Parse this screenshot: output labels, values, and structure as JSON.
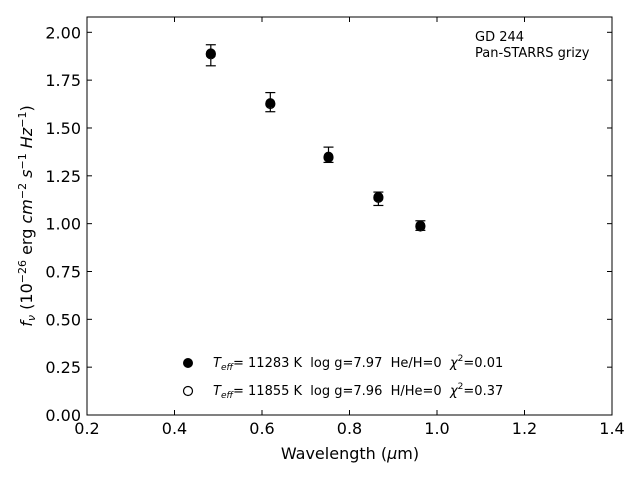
{
  "chart_data": {
    "type": "scatter",
    "annotation": {
      "line1": "GD 244",
      "line2": "Pan-STARRS grizy"
    },
    "xlabel": {
      "main": "Wavelength (",
      "sym": "μ",
      "end": "m)"
    },
    "ylabel": {
      "f": "f",
      "nu": "ν",
      "open": " (10",
      "e1": "−26",
      "erg": " erg ",
      "cm": "cm",
      "e2": "−2",
      "s": " s",
      "e3": "−1",
      "hz": " Hz",
      "e4": "−1",
      "close": ")"
    },
    "xlim": [
      0.2,
      1.4
    ],
    "ylim": [
      0.0,
      2.08
    ],
    "xticks": [
      0.2,
      0.4,
      0.6,
      0.8,
      1.0,
      1.2,
      1.4
    ],
    "xtick_labels": [
      "0.2",
      "0.4",
      "0.6",
      "0.8",
      "1.0",
      "1.2",
      "1.4"
    ],
    "yticks": [
      0.0,
      0.25,
      0.5,
      0.75,
      1.0,
      1.25,
      1.5,
      1.75,
      2.0
    ],
    "ytick_labels": [
      "0.00",
      "0.25",
      "0.50",
      "0.75",
      "1.00",
      "1.25",
      "1.50",
      "1.75",
      "2.00"
    ],
    "grid": false,
    "observed": {
      "x": [
        0.483,
        0.619,
        0.752,
        0.866,
        0.962
      ],
      "y": [
        1.88,
        1.635,
        1.36,
        1.13,
        0.99
      ],
      "yerr": [
        0.055,
        0.05,
        0.04,
        0.035,
        0.025
      ]
    },
    "series": [
      {
        "marker": "filled-circle",
        "x": [
          0.483,
          0.619,
          0.752,
          0.866,
          0.962
        ],
        "y": [
          1.89,
          1.63,
          1.35,
          1.14,
          0.99
        ],
        "label": {
          "t": "T",
          "eff": "eff",
          "text": "= 11283 K  log g=7.97  He/H=0  ",
          "chi": "χ",
          "sq": "2",
          "val": "=0.01"
        }
      },
      {
        "marker": "open-circle",
        "x": [
          0.483,
          0.619,
          0.752,
          0.866,
          0.962
        ],
        "y": [
          1.885,
          1.625,
          1.345,
          1.135,
          0.985
        ],
        "label": {
          "t": "T",
          "eff": "eff",
          "text": "= 11855 K  log g=7.96  H/He=0  ",
          "chi": "χ",
          "sq": "2",
          "val": "=0.37"
        }
      }
    ],
    "legend_position": "bottom-center",
    "colors": {
      "marker": "#000000",
      "axis": "#000000"
    }
  }
}
